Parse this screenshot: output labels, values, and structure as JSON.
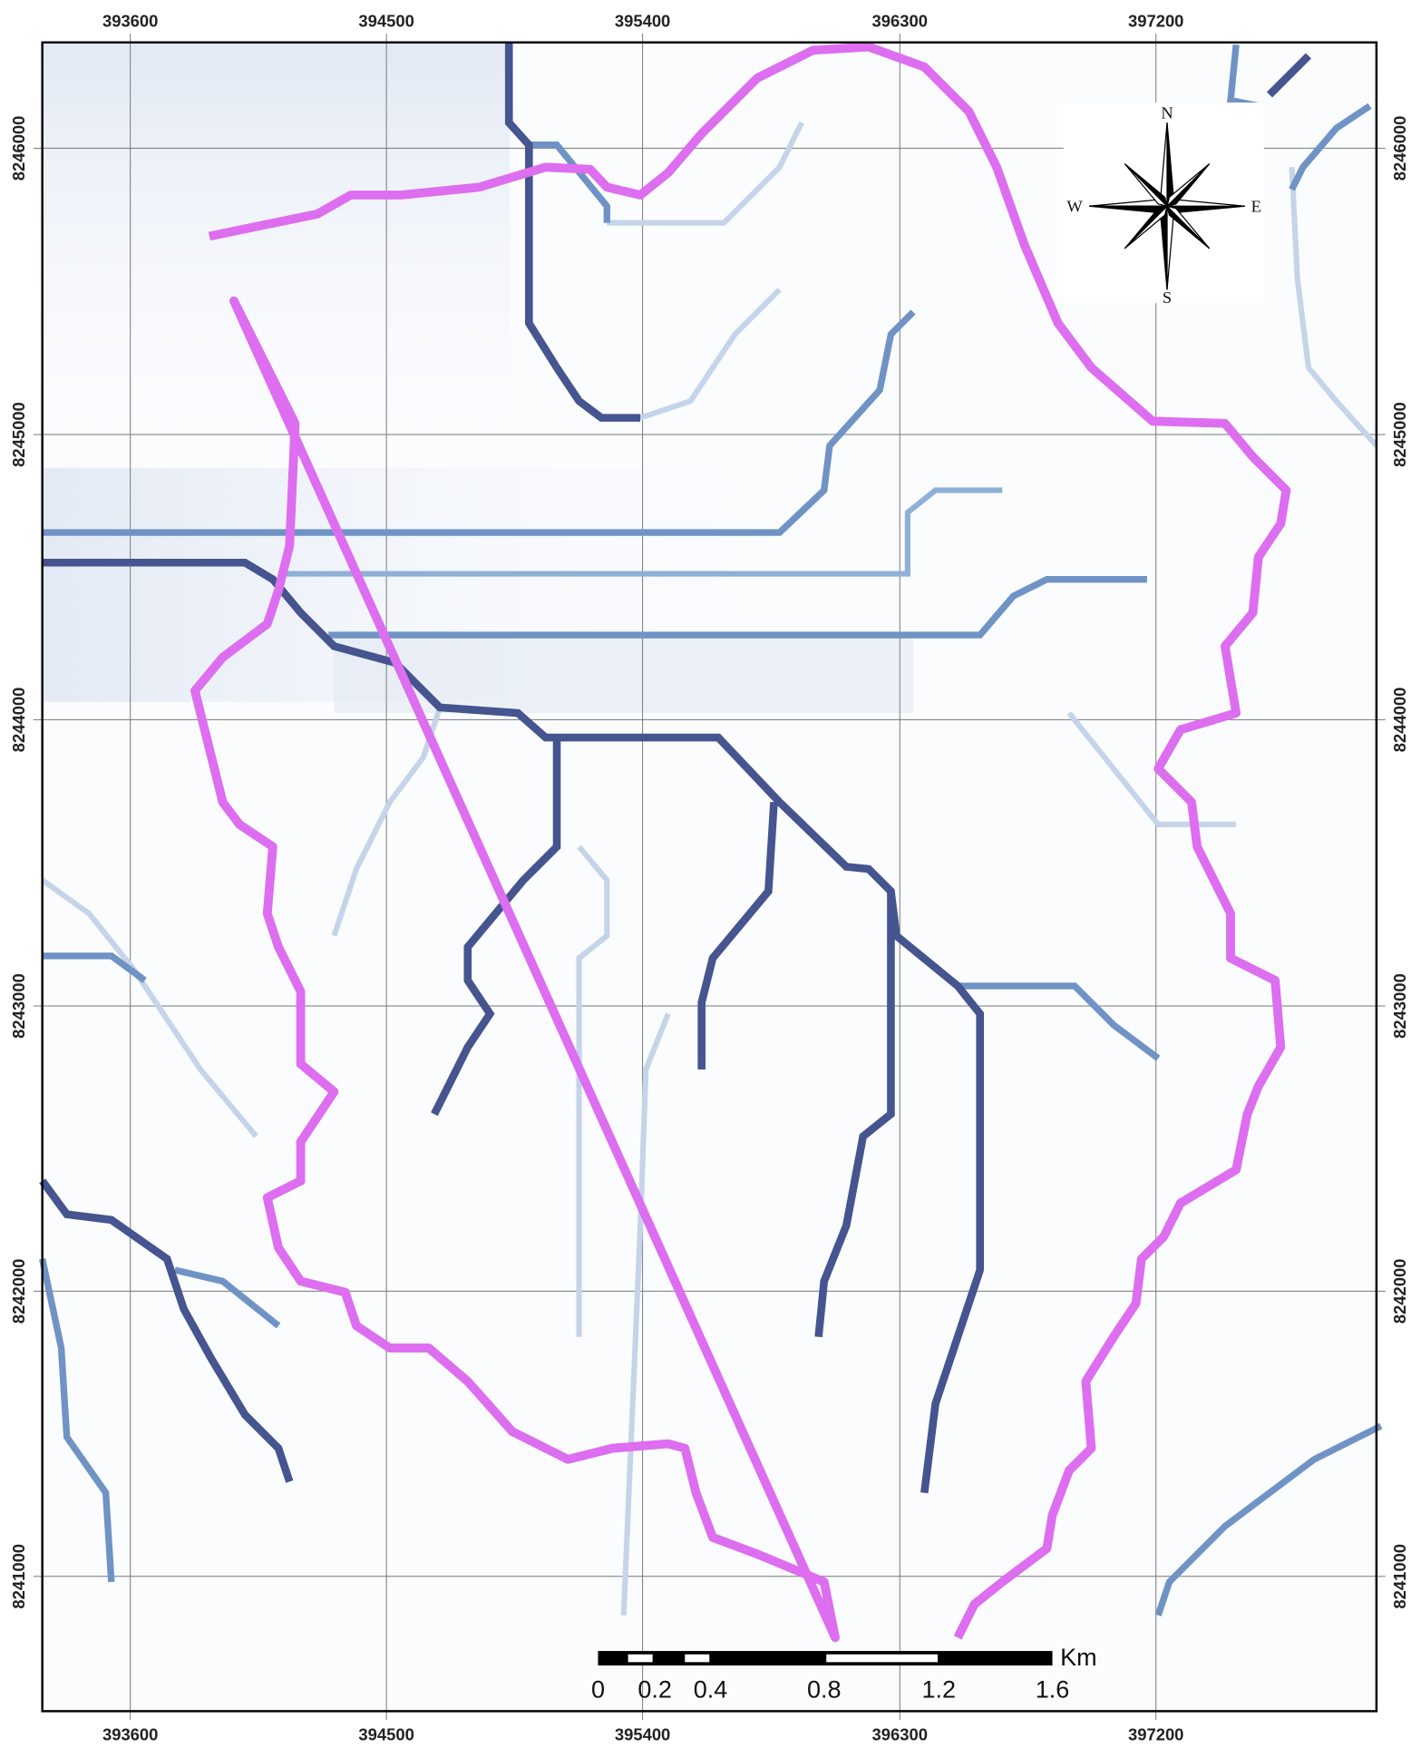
{
  "x_labels": [
    "393600",
    "394500",
    "395400",
    "396300",
    "397200"
  ],
  "y_labels": [
    "8246000",
    "8245000",
    "8244000",
    "8243000",
    "8242000",
    "8241000"
  ],
  "compass": {
    "north": "N",
    "east": "E",
    "south": "S",
    "west": "W"
  },
  "scale_bar": {
    "labels": [
      "0",
      "0.2",
      "0.4",
      "0.8",
      "1.2",
      "1.6"
    ],
    "unit": "Km"
  }
}
